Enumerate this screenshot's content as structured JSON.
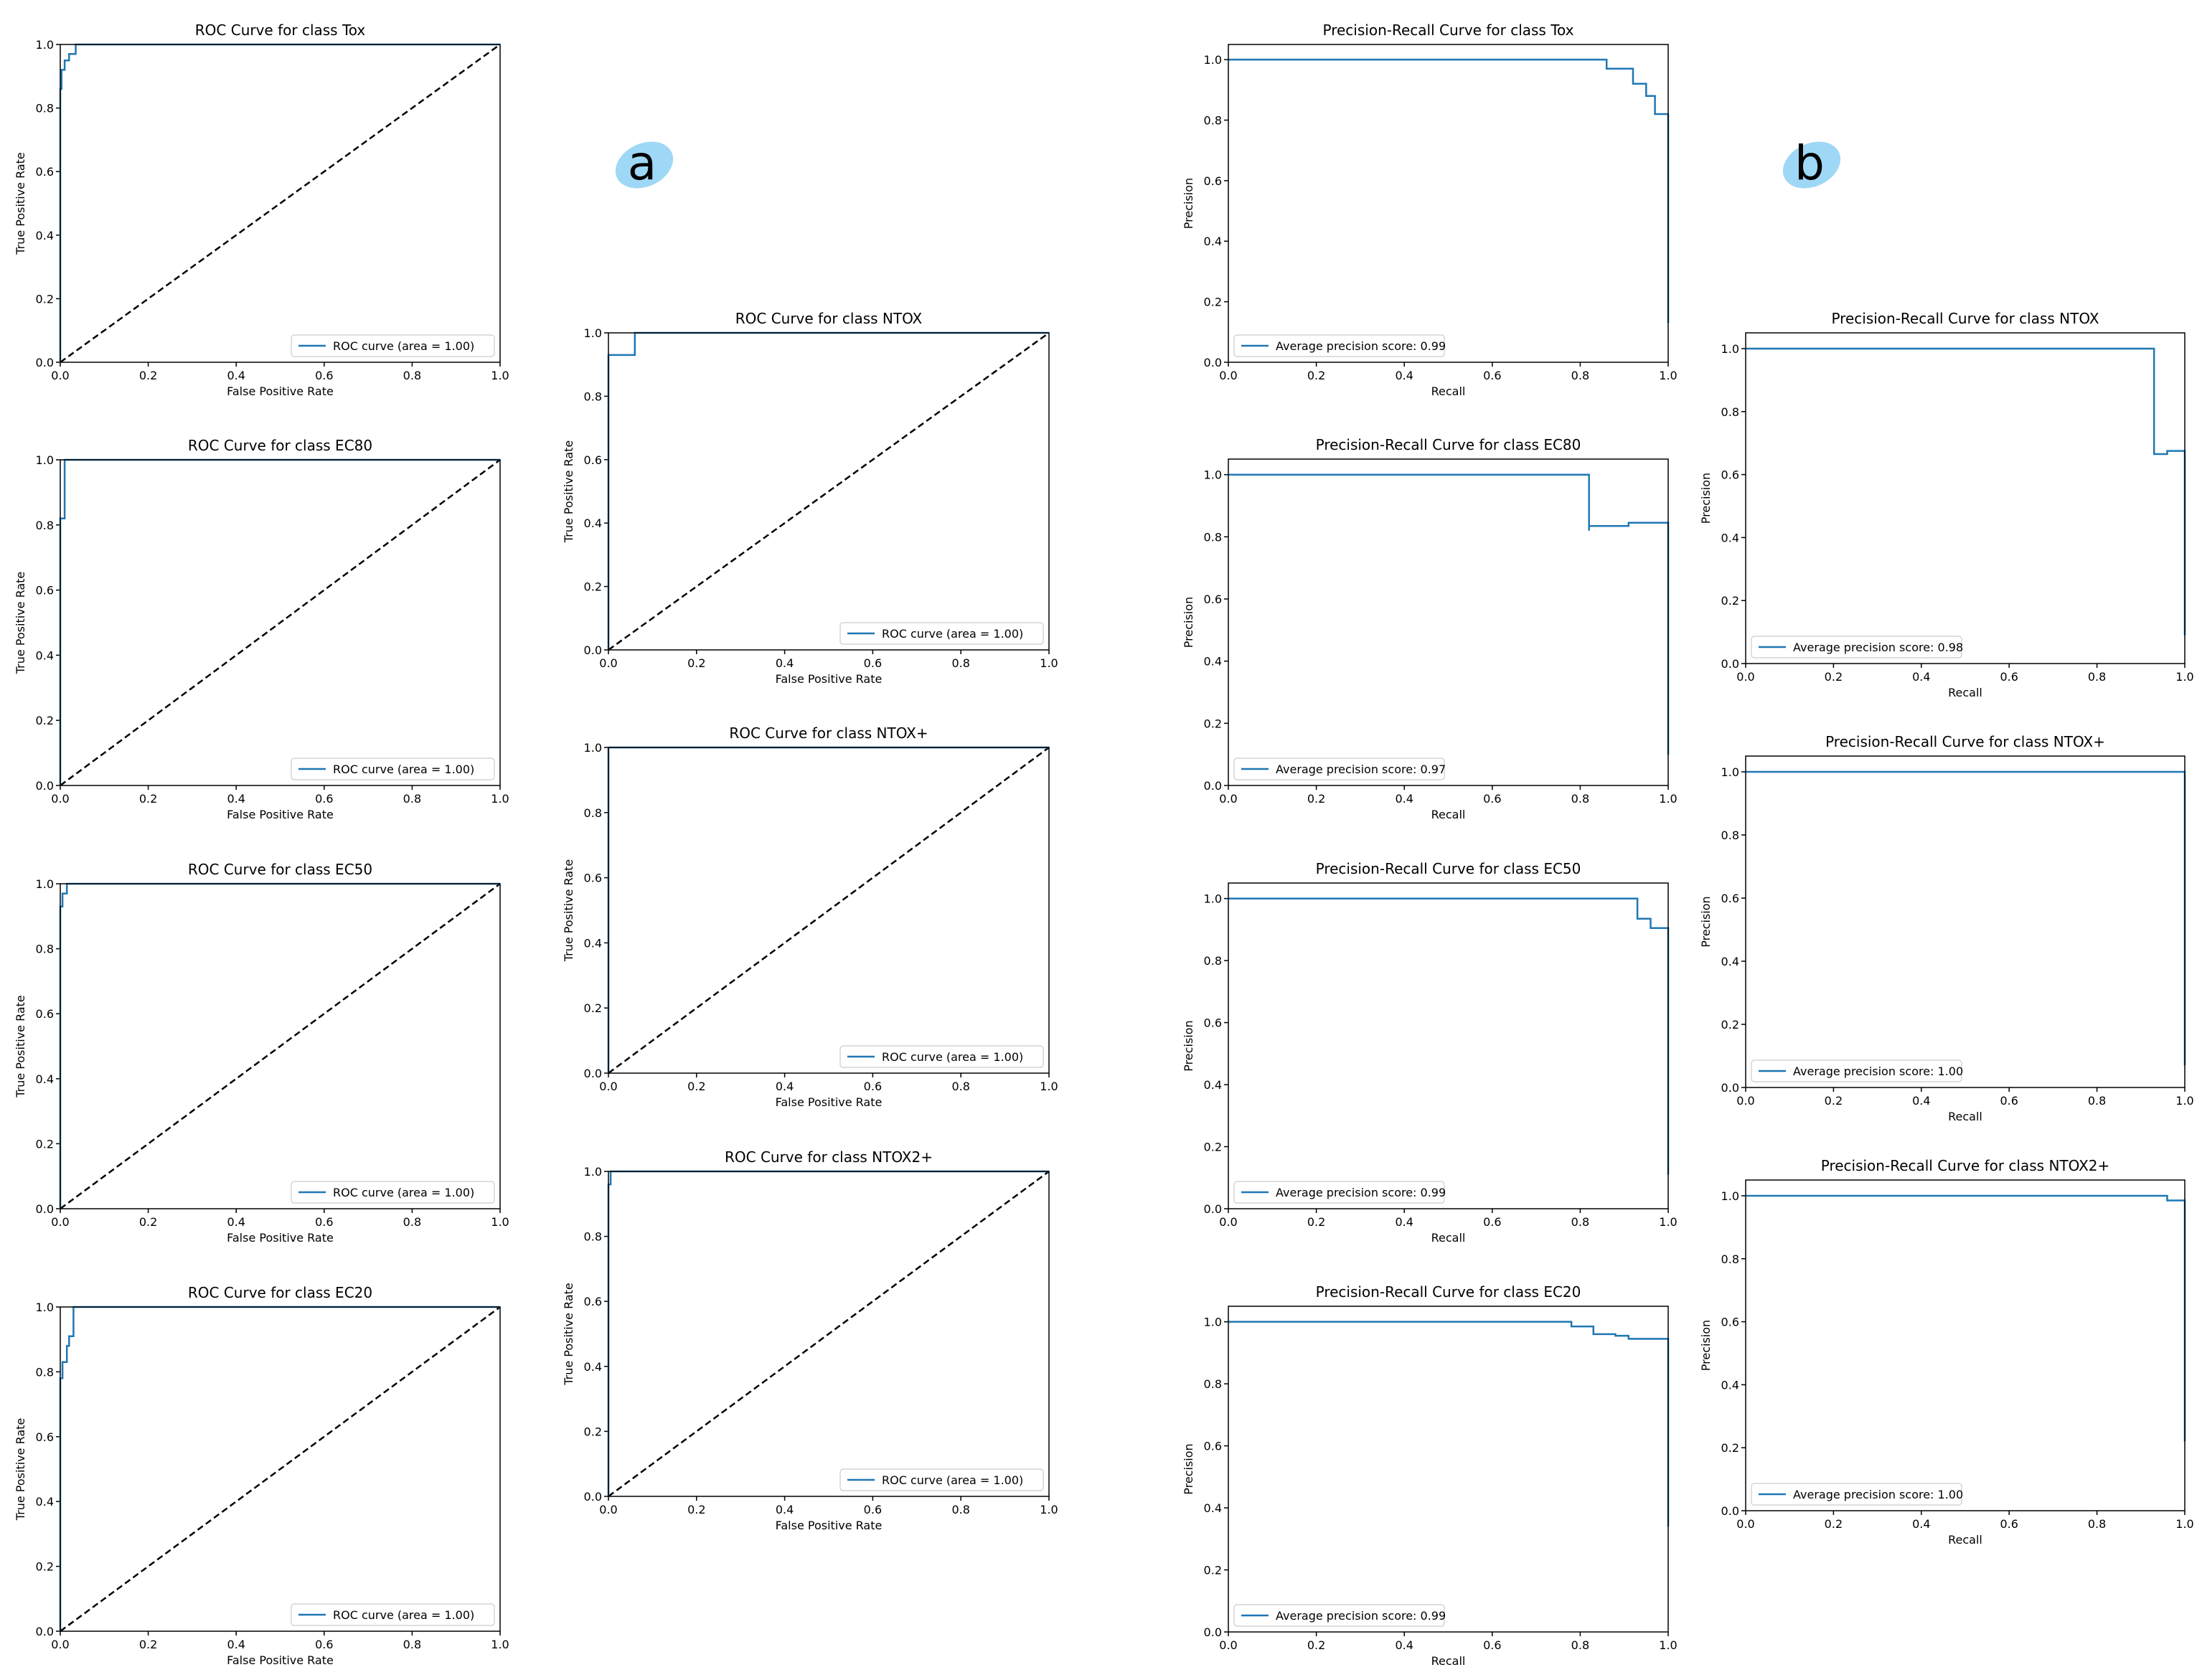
{
  "panel_labels": {
    "a": "a",
    "b": "b"
  },
  "colors": {
    "curve": "#1f77b4",
    "diagonal": "#000000",
    "badge": "#9fd8f6"
  },
  "chart_data": [
    {
      "id": "roc-tox",
      "type": "line",
      "title": "ROC Curve for class Tox",
      "xlabel": "False Positive Rate",
      "ylabel": "True Positive Rate",
      "xlim": [
        0,
        1
      ],
      "ylim": [
        0,
        1
      ],
      "xticks": [
        "0.0",
        "0.2",
        "0.4",
        "0.6",
        "0.8",
        "1.0"
      ],
      "yticks": [
        "0.0",
        "0.2",
        "0.4",
        "0.6",
        "0.8",
        "1.0"
      ],
      "legend": "ROC curve (area = 1.00)",
      "legend_loc": "lower right",
      "diagonal": true,
      "series": [
        {
          "name": "ROC curve (area = 1.00)",
          "x": [
            0,
            0,
            0.003,
            0.003,
            0.01,
            0.01,
            0.02,
            0.02,
            0.035,
            0.035,
            1
          ],
          "y": [
            0,
            0.86,
            0.86,
            0.92,
            0.92,
            0.95,
            0.95,
            0.97,
            0.97,
            1,
            1
          ]
        }
      ]
    },
    {
      "id": "roc-ec80",
      "type": "line",
      "title": "ROC Curve for class EC80",
      "xlabel": "False Positive Rate",
      "ylabel": "True Positive Rate",
      "xlim": [
        0,
        1
      ],
      "ylim": [
        0,
        1
      ],
      "xticks": [
        "0.0",
        "0.2",
        "0.4",
        "0.6",
        "0.8",
        "1.0"
      ],
      "yticks": [
        "0.0",
        "0.2",
        "0.4",
        "0.6",
        "0.8",
        "1.0"
      ],
      "legend": "ROC curve (area = 1.00)",
      "legend_loc": "lower right",
      "diagonal": true,
      "series": [
        {
          "name": "ROC curve (area = 1.00)",
          "x": [
            0,
            0,
            0.01,
            0.01,
            1
          ],
          "y": [
            0,
            0.82,
            0.82,
            1,
            1
          ]
        }
      ]
    },
    {
      "id": "roc-ec50",
      "type": "line",
      "title": "ROC Curve for class EC50",
      "xlabel": "False Positive Rate",
      "ylabel": "True Positive Rate",
      "xlim": [
        0,
        1
      ],
      "ylim": [
        0,
        1
      ],
      "xticks": [
        "0.0",
        "0.2",
        "0.4",
        "0.6",
        "0.8",
        "1.0"
      ],
      "yticks": [
        "0.0",
        "0.2",
        "0.4",
        "0.6",
        "0.8",
        "1.0"
      ],
      "legend": "ROC curve (area = 1.00)",
      "legend_loc": "lower right",
      "diagonal": true,
      "series": [
        {
          "name": "ROC curve (area = 1.00)",
          "x": [
            0,
            0,
            0.005,
            0.005,
            0.015,
            0.015,
            1
          ],
          "y": [
            0,
            0.93,
            0.93,
            0.97,
            0.97,
            1,
            1
          ]
        }
      ]
    },
    {
      "id": "roc-ec20",
      "type": "line",
      "title": "ROC Curve for class EC20",
      "xlabel": "False Positive Rate",
      "ylabel": "True Positive Rate",
      "xlim": [
        0,
        1
      ],
      "ylim": [
        0,
        1
      ],
      "xticks": [
        "0.0",
        "0.2",
        "0.4",
        "0.6",
        "0.8",
        "1.0"
      ],
      "yticks": [
        "0.0",
        "0.2",
        "0.4",
        "0.6",
        "0.8",
        "1.0"
      ],
      "legend": "ROC curve (area = 1.00)",
      "legend_loc": "lower right",
      "diagonal": true,
      "series": [
        {
          "name": "ROC curve (area = 1.00)",
          "x": [
            0,
            0,
            0.005,
            0.005,
            0.015,
            0.015,
            0.02,
            0.02,
            0.03,
            0.03,
            1
          ],
          "y": [
            0,
            0.78,
            0.78,
            0.83,
            0.83,
            0.88,
            0.88,
            0.91,
            0.91,
            1,
            1
          ]
        }
      ]
    },
    {
      "id": "roc-ntox",
      "type": "line",
      "title": "ROC Curve for class NTOX",
      "xlabel": "False Positive Rate",
      "ylabel": "True Positive Rate",
      "xlim": [
        0,
        1
      ],
      "ylim": [
        0,
        1
      ],
      "xticks": [
        "0.0",
        "0.2",
        "0.4",
        "0.6",
        "0.8",
        "1.0"
      ],
      "yticks": [
        "0.0",
        "0.2",
        "0.4",
        "0.6",
        "0.8",
        "1.0"
      ],
      "legend": "ROC curve (area = 1.00)",
      "legend_loc": "lower right",
      "diagonal": true,
      "series": [
        {
          "name": "ROC curve (area = 1.00)",
          "x": [
            0,
            0,
            0.06,
            0.06,
            1
          ],
          "y": [
            0,
            0.93,
            0.93,
            1,
            1
          ]
        }
      ]
    },
    {
      "id": "roc-ntoxplus",
      "type": "line",
      "title": "ROC Curve for class NTOX+",
      "xlabel": "False Positive Rate",
      "ylabel": "True Positive Rate",
      "xlim": [
        0,
        1
      ],
      "ylim": [
        0,
        1
      ],
      "xticks": [
        "0.0",
        "0.2",
        "0.4",
        "0.6",
        "0.8",
        "1.0"
      ],
      "yticks": [
        "0.0",
        "0.2",
        "0.4",
        "0.6",
        "0.8",
        "1.0"
      ],
      "legend": "ROC curve (area = 1.00)",
      "legend_loc": "lower right",
      "diagonal": true,
      "series": [
        {
          "name": "ROC curve (area = 1.00)",
          "x": [
            0,
            0,
            1
          ],
          "y": [
            0,
            1,
            1
          ]
        }
      ]
    },
    {
      "id": "roc-ntox2plus",
      "type": "line",
      "title": "ROC Curve for class NTOX2+",
      "xlabel": "False Positive Rate",
      "ylabel": "True Positive Rate",
      "xlim": [
        0,
        1
      ],
      "ylim": [
        0,
        1
      ],
      "xticks": [
        "0.0",
        "0.2",
        "0.4",
        "0.6",
        "0.8",
        "1.0"
      ],
      "yticks": [
        "0.0",
        "0.2",
        "0.4",
        "0.6",
        "0.8",
        "1.0"
      ],
      "legend": "ROC curve (area = 1.00)",
      "legend_loc": "lower right",
      "diagonal": true,
      "series": [
        {
          "name": "ROC curve (area = 1.00)",
          "x": [
            0,
            0,
            0.005,
            0.005,
            1
          ],
          "y": [
            0,
            0.96,
            0.96,
            1,
            1
          ]
        }
      ]
    },
    {
      "id": "pr-tox",
      "type": "line",
      "title": "Precision-Recall Curve for class Tox",
      "xlabel": "Recall",
      "ylabel": "Precision",
      "xlim": [
        0,
        1
      ],
      "ylim": [
        0,
        1.05
      ],
      "xticks": [
        "0.0",
        "0.2",
        "0.4",
        "0.6",
        "0.8",
        "1.0"
      ],
      "yticks": [
        "0.0",
        "0.2",
        "0.4",
        "0.6",
        "0.8",
        "1.0"
      ],
      "legend": "Average precision score: 0.99",
      "legend_loc": "lower left",
      "diagonal": false,
      "series": [
        {
          "name": "Average precision score: 0.99",
          "x": [
            0,
            0.86,
            0.86,
            0.92,
            0.92,
            0.95,
            0.95,
            0.97,
            0.97,
            1,
            1
          ],
          "y": [
            1,
            1,
            0.97,
            0.97,
            0.92,
            0.92,
            0.88,
            0.88,
            0.82,
            0.82,
            0.13
          ]
        }
      ]
    },
    {
      "id": "pr-ec80",
      "type": "line",
      "title": "Precision-Recall Curve for class EC80",
      "xlabel": "Recall",
      "ylabel": "Precision",
      "xlim": [
        0,
        1
      ],
      "ylim": [
        0,
        1.05
      ],
      "xticks": [
        "0.0",
        "0.2",
        "0.4",
        "0.6",
        "0.8",
        "1.0"
      ],
      "yticks": [
        "0.0",
        "0.2",
        "0.4",
        "0.6",
        "0.8",
        "1.0"
      ],
      "legend": "Average precision score: 0.97",
      "legend_loc": "lower left",
      "diagonal": false,
      "series": [
        {
          "name": "Average precision score: 0.97",
          "x": [
            0,
            0.82,
            0.82,
            0.82,
            0.82,
            0.91,
            0.91,
            1,
            1
          ],
          "y": [
            1,
            1,
            0.82,
            0.82,
            0.835,
            0.835,
            0.845,
            0.845,
            0.1
          ]
        }
      ]
    },
    {
      "id": "pr-ec50",
      "type": "line",
      "title": "Precision-Recall Curve for class EC50",
      "xlabel": "Recall",
      "ylabel": "Precision",
      "xlim": [
        0,
        1
      ],
      "ylim": [
        0,
        1.05
      ],
      "xticks": [
        "0.0",
        "0.2",
        "0.4",
        "0.6",
        "0.8",
        "1.0"
      ],
      "yticks": [
        "0.0",
        "0.2",
        "0.4",
        "0.6",
        "0.8",
        "1.0"
      ],
      "legend": "Average precision score: 0.99",
      "legend_loc": "lower left",
      "diagonal": false,
      "series": [
        {
          "name": "Average precision score: 0.99",
          "x": [
            0,
            0.93,
            0.93,
            0.96,
            0.96,
            1,
            1
          ],
          "y": [
            1,
            1,
            0.935,
            0.935,
            0.905,
            0.905,
            0.11
          ]
        }
      ]
    },
    {
      "id": "pr-ec20",
      "type": "line",
      "title": "Precision-Recall Curve for class EC20",
      "xlabel": "Recall",
      "ylabel": "Precision",
      "xlim": [
        0,
        1
      ],
      "ylim": [
        0,
        1.05
      ],
      "xticks": [
        "0.0",
        "0.2",
        "0.4",
        "0.6",
        "0.8",
        "1.0"
      ],
      "yticks": [
        "0.0",
        "0.2",
        "0.4",
        "0.6",
        "0.8",
        "1.0"
      ],
      "legend": "Average precision score: 0.99",
      "legend_loc": "lower left",
      "diagonal": false,
      "series": [
        {
          "name": "Average precision score: 0.99",
          "x": [
            0,
            0.78,
            0.78,
            0.83,
            0.83,
            0.88,
            0.88,
            0.91,
            0.91,
            1,
            1
          ],
          "y": [
            1,
            1,
            0.985,
            0.985,
            0.96,
            0.96,
            0.955,
            0.955,
            0.945,
            0.945,
            0.34
          ]
        }
      ]
    },
    {
      "id": "pr-ntox",
      "type": "line",
      "title": "Precision-Recall Curve for class NTOX",
      "xlabel": "Recall",
      "ylabel": "Precision",
      "xlim": [
        0,
        1
      ],
      "ylim": [
        0,
        1.05
      ],
      "xticks": [
        "0.0",
        "0.2",
        "0.4",
        "0.6",
        "0.8",
        "1.0"
      ],
      "yticks": [
        "0.0",
        "0.2",
        "0.4",
        "0.6",
        "0.8",
        "1.0"
      ],
      "legend": "Average precision score: 0.98",
      "legend_loc": "lower left",
      "diagonal": false,
      "series": [
        {
          "name": "Average precision score: 0.98",
          "x": [
            0,
            0.93,
            0.93,
            0.96,
            0.96,
            1,
            1
          ],
          "y": [
            1,
            1,
            0.665,
            0.665,
            0.675,
            0.675,
            0.09
          ]
        }
      ]
    },
    {
      "id": "pr-ntoxplus",
      "type": "line",
      "title": "Precision-Recall Curve for class NTOX+",
      "xlabel": "Recall",
      "ylabel": "Precision",
      "xlim": [
        0,
        1
      ],
      "ylim": [
        0,
        1.05
      ],
      "xticks": [
        "0.0",
        "0.2",
        "0.4",
        "0.6",
        "0.8",
        "1.0"
      ],
      "yticks": [
        "0.0",
        "0.2",
        "0.4",
        "0.6",
        "0.8",
        "1.0"
      ],
      "legend": "Average precision score: 1.00",
      "legend_loc": "lower left",
      "diagonal": false,
      "series": [
        {
          "name": "Average precision score: 1.00",
          "x": [
            0,
            1,
            1
          ],
          "y": [
            1,
            1,
            0.07
          ]
        }
      ]
    },
    {
      "id": "pr-ntox2plus",
      "type": "line",
      "title": "Precision-Recall Curve for class NTOX2+",
      "xlabel": "Recall",
      "ylabel": "Precision",
      "xlim": [
        0,
        1
      ],
      "ylim": [
        0,
        1.05
      ],
      "xticks": [
        "0.0",
        "0.2",
        "0.4",
        "0.6",
        "0.8",
        "1.0"
      ],
      "yticks": [
        "0.0",
        "0.2",
        "0.4",
        "0.6",
        "0.8",
        "1.0"
      ],
      "legend": "Average precision score: 1.00",
      "legend_loc": "lower left",
      "diagonal": false,
      "series": [
        {
          "name": "Average precision score: 1.00",
          "x": [
            0,
            0.96,
            0.96,
            1,
            1
          ],
          "y": [
            1,
            1,
            0.985,
            0.985,
            0.22
          ]
        }
      ]
    }
  ]
}
